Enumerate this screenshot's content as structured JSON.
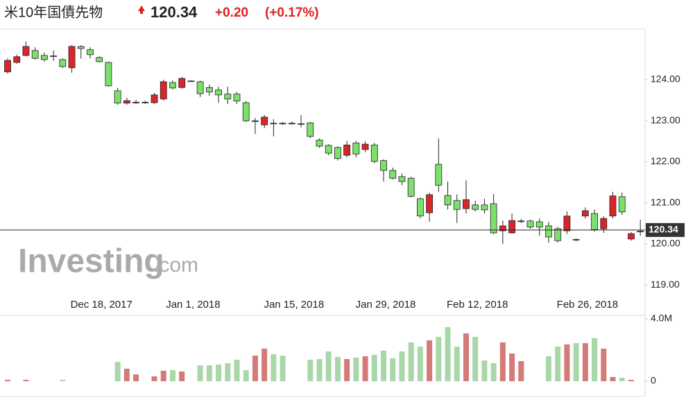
{
  "header": {
    "title": "米10年国債先物",
    "price": "120.34",
    "change": "+0.20",
    "change_pct": "(+0.17%)"
  },
  "chart_data": {
    "type": "candlestick",
    "watermark": {
      "brand": "Investing",
      "suffix": ".com"
    },
    "categories": [
      null,
      null,
      null,
      null,
      null,
      null,
      null,
      null,
      null,
      null,
      "Dec 18, 2017",
      null,
      null,
      null,
      null,
      null,
      null,
      null,
      null,
      null,
      "Jan 1, 2018",
      null,
      null,
      null,
      null,
      null,
      null,
      null,
      null,
      null,
      null,
      "Jan 15, 2018",
      null,
      null,
      null,
      null,
      null,
      null,
      null,
      null,
      null,
      "Jan 29, 2018",
      null,
      null,
      null,
      null,
      null,
      null,
      null,
      null,
      null,
      "Feb 12, 2018",
      null,
      null,
      null,
      null,
      null,
      null,
      null,
      null,
      null,
      null,
      null,
      "Feb 26, 2018",
      null,
      null,
      null,
      null,
      null,
      null
    ],
    "open": [
      124.19,
      124.42,
      124.59,
      124.71,
      124.59,
      124.58,
      124.49,
      124.29,
      124.81,
      124.73,
      124.54,
      124.42,
      123.73,
      123.43,
      123.44,
      123.45,
      123.44,
      123.53,
      123.93,
      123.81,
      123.97,
      123.95,
      123.81,
      123.75,
      123.65,
      123.65,
      123.44,
      123.0,
      122.9,
      122.94,
      122.94,
      122.94,
      122.93,
      122.95,
      122.53,
      122.4,
      122.35,
      122.16,
      122.46,
      122.3,
      122.41,
      122.03,
      121.79,
      121.64,
      121.6,
      121.1,
      120.76,
      121.94,
      121.18,
      121.06,
      120.86,
      120.95,
      120.95,
      120.98,
      120.32,
      120.27,
      120.56,
      120.56,
      120.54,
      120.44,
      120.37,
      120.32,
      120.11,
      120.68,
      120.74,
      120.37,
      120.68,
      121.15,
      120.12,
      120.31
    ],
    "high": [
      124.52,
      124.61,
      124.93,
      124.79,
      124.66,
      124.71,
      124.52,
      124.84,
      124.84,
      124.79,
      124.57,
      124.44,
      123.8,
      123.56,
      123.51,
      123.49,
      123.68,
      124.0,
      123.98,
      124.07,
      123.99,
      123.98,
      123.88,
      123.83,
      123.83,
      123.7,
      123.48,
      123.07,
      123.14,
      123.04,
      122.97,
      122.98,
      123.14,
      122.97,
      122.57,
      122.43,
      122.38,
      122.51,
      122.51,
      122.5,
      122.46,
      122.06,
      121.86,
      121.72,
      121.64,
      121.13,
      121.25,
      122.57,
      121.52,
      121.21,
      121.55,
      121.05,
      121.1,
      121.22,
      120.57,
      120.74,
      120.61,
      120.59,
      120.62,
      120.54,
      120.42,
      120.79,
      120.14,
      120.89,
      120.84,
      120.68,
      121.27,
      121.25,
      120.29,
      120.59
    ],
    "low": [
      124.15,
      124.39,
      124.57,
      124.49,
      124.44,
      124.46,
      124.29,
      124.17,
      124.51,
      124.52,
      124.42,
      123.83,
      123.39,
      123.39,
      123.41,
      123.41,
      123.41,
      123.49,
      123.76,
      123.78,
      123.95,
      123.58,
      123.61,
      123.44,
      123.41,
      123.41,
      122.97,
      122.68,
      122.82,
      122.62,
      122.9,
      122.91,
      122.84,
      122.58,
      122.34,
      122.16,
      122.03,
      122.11,
      122.11,
      122.23,
      121.97,
      121.52,
      121.57,
      121.43,
      121.13,
      120.62,
      120.54,
      121.27,
      120.84,
      120.51,
      120.74,
      120.79,
      120.74,
      120.24,
      120.0,
      120.25,
      120.51,
      120.37,
      120.2,
      120.03,
      120.03,
      120.24,
      120.07,
      120.62,
      120.3,
      120.27,
      120.62,
      120.71,
      120.08,
      120.2
    ],
    "close": [
      124.47,
      124.56,
      124.81,
      124.52,
      124.49,
      124.57,
      124.32,
      124.81,
      124.76,
      124.61,
      124.44,
      123.85,
      123.43,
      123.49,
      123.45,
      123.44,
      123.63,
      123.95,
      123.8,
      124.03,
      123.96,
      123.66,
      123.7,
      123.63,
      123.53,
      123.48,
      123.0,
      123.0,
      123.09,
      122.93,
      122.93,
      122.94,
      122.92,
      122.62,
      122.38,
      122.21,
      122.08,
      122.41,
      122.19,
      122.43,
      122.01,
      121.79,
      121.6,
      121.52,
      121.16,
      120.68,
      121.2,
      121.43,
      120.95,
      120.84,
      121.08,
      120.84,
      120.83,
      120.27,
      120.44,
      120.57,
      120.56,
      120.41,
      120.41,
      120.17,
      120.08,
      120.68,
      120.1,
      120.81,
      120.35,
      120.62,
      121.17,
      120.78,
      120.25,
      120.3
    ],
    "volume": [
      90000,
      0,
      90000,
      0,
      0,
      0,
      90000,
      0,
      0,
      0,
      0,
      0,
      1240000,
      800000,
      440000,
      0,
      310000,
      670000,
      710000,
      620000,
      0,
      1020000,
      1020000,
      1070000,
      1160000,
      1380000,
      710000,
      1640000,
      2090000,
      1730000,
      1640000,
      0,
      0,
      1380000,
      1420000,
      1910000,
      1560000,
      1420000,
      1510000,
      1600000,
      1690000,
      1960000,
      1470000,
      1910000,
      2490000,
      2220000,
      2620000,
      2840000,
      3470000,
      2220000,
      3070000,
      2840000,
      1330000,
      1160000,
      2490000,
      1780000,
      1290000,
      0,
      0,
      1600000,
      2220000,
      2360000,
      2440000,
      2440000,
      2760000,
      2090000,
      270000,
      220000,
      90000,
      0
    ],
    "up_color": "#d8262b",
    "down_color": "#7ee06c",
    "up_volume_color": "#d47a78",
    "down_volume_color": "#a9d7a9",
    "last": 120.34,
    "ylim": [
      118.7,
      125.2
    ],
    "yticks": [
      {
        "value": 124,
        "label": "124.00"
      },
      {
        "value": 123,
        "label": "123.00"
      },
      {
        "value": 122,
        "label": "122.00"
      },
      {
        "value": 121,
        "label": "121.00"
      },
      {
        "value": 120,
        "label": "120.00"
      },
      {
        "value": 119,
        "label": "119.00"
      }
    ],
    "y2lim": [
      0,
      4200000
    ],
    "y2ticks": [
      0,
      {
        "value": 4000000,
        "label": "4.0M"
      }
    ]
  }
}
